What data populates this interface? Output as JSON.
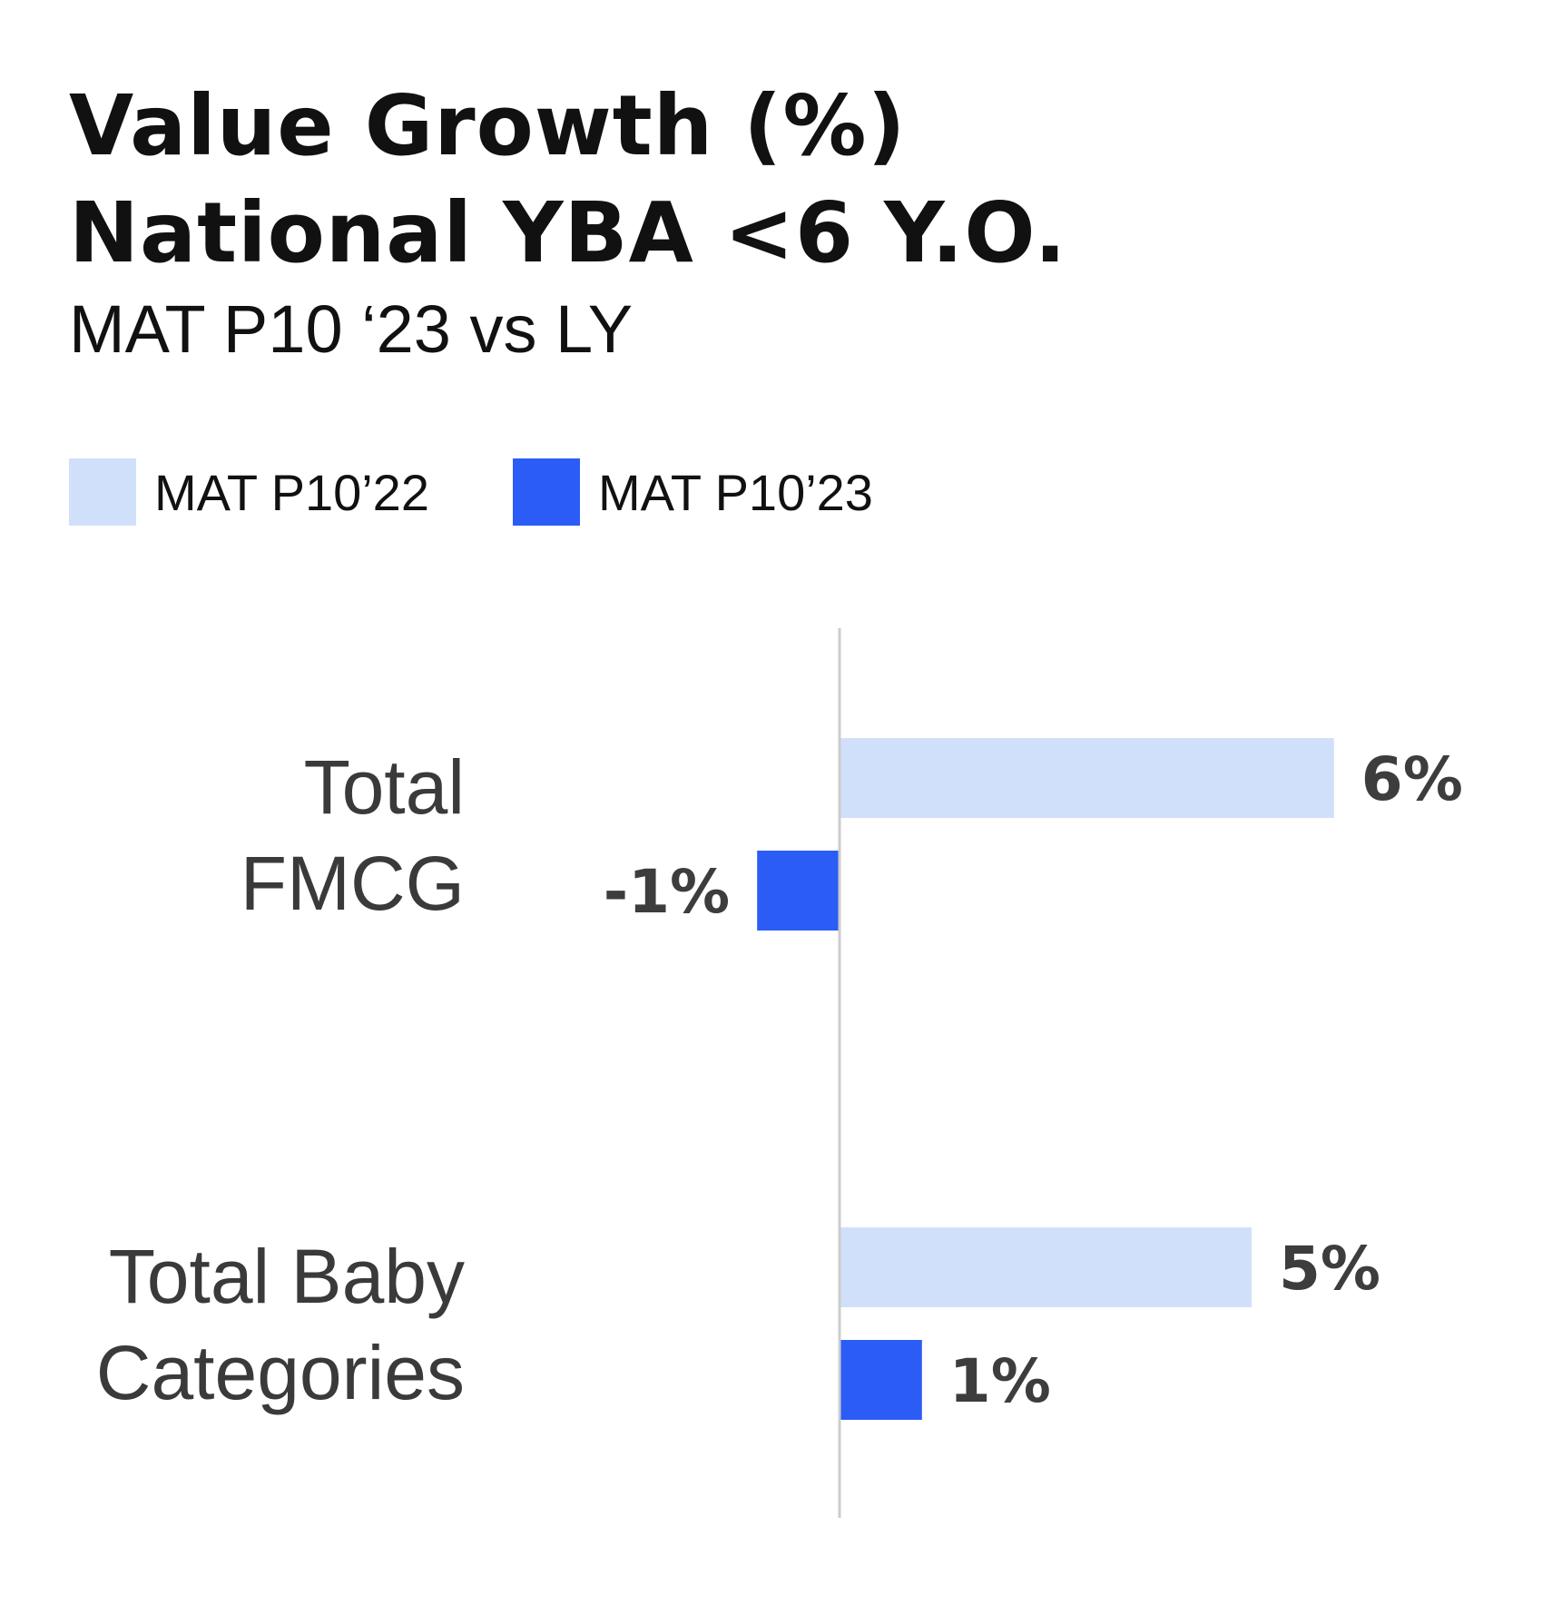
{
  "title": {
    "line1": "Value Growth (%)",
    "line2": "National YBA <6 Y.O.",
    "subtitle": "MAT P10 ‘23 vs LY"
  },
  "legend": [
    {
      "label": "MAT P10’22",
      "color": "#d1e0fa"
    },
    {
      "label": "MAT P10’23",
      "color": "#2b5cf6"
    }
  ],
  "chart_data": {
    "type": "bar",
    "orientation": "horizontal",
    "categories": [
      [
        "Total",
        "FMCG"
      ],
      [
        "Total Baby",
        "Categories"
      ]
    ],
    "series": [
      {
        "name": "MAT P10’22",
        "values": [
          6,
          5
        ],
        "labels": [
          "6%",
          "5%"
        ],
        "color": "#d1e0fa"
      },
      {
        "name": "MAT P10’23",
        "values": [
          -1,
          1
        ],
        "labels": [
          "-1%",
          "1%"
        ],
        "color": "#2b5cf6"
      }
    ],
    "xlim": [
      -1.5,
      8
    ],
    "grid": false,
    "zero_line": true,
    "legend_position": "top-left",
    "value_unit": "%"
  }
}
